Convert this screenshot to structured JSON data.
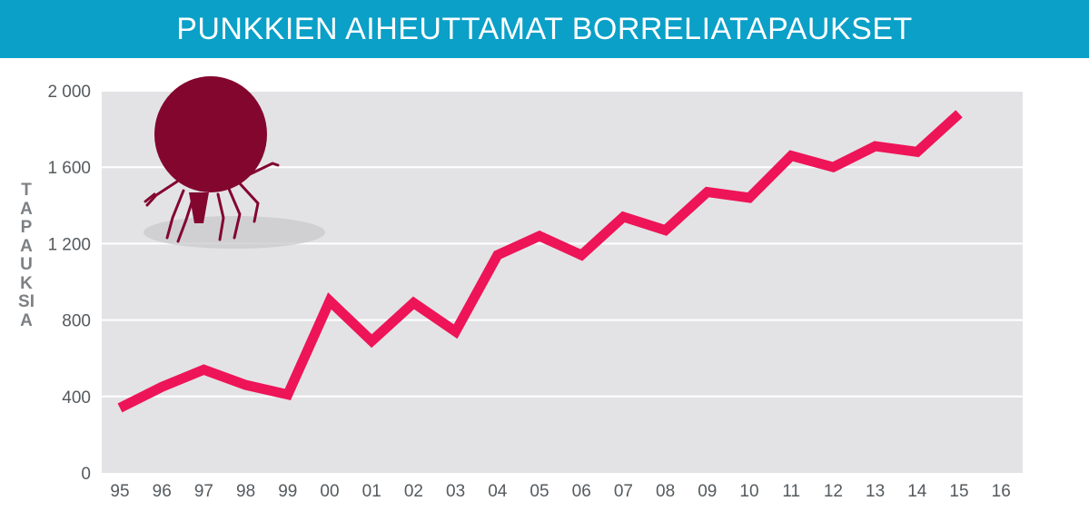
{
  "chart_data": {
    "type": "line",
    "title": "PUNKKIEN AIHEUTTAMAT BORRELIATAPAUKSET",
    "xlabel": "",
    "ylabel": "TAPAUKSIA",
    "categories": [
      "95",
      "96",
      "97",
      "98",
      "99",
      "00",
      "01",
      "02",
      "03",
      "04",
      "05",
      "06",
      "07",
      "08",
      "09",
      "10",
      "11",
      "12",
      "13",
      "14",
      "15",
      "16"
    ],
    "series": [
      {
        "name": "Borreliatapaukset",
        "values": [
          340,
          450,
          540,
          460,
          410,
          900,
          690,
          890,
          740,
          1140,
          1240,
          1140,
          1340,
          1270,
          1470,
          1440,
          1660,
          1600,
          1710,
          1680,
          1880,
          null
        ]
      }
    ],
    "ylim": [
      0,
      2000
    ],
    "yticks": [
      0,
      400,
      800,
      1200,
      1600,
      2000
    ],
    "ytick_labels": [
      "0",
      "400",
      "800",
      "1 200",
      "1 600",
      "2 000"
    ],
    "grid": true,
    "colors": {
      "header": "#0aa0c8",
      "plot_background": "#e3e3e5",
      "line": "#ee1458",
      "tick": "#7e8184",
      "tick_illustration": "#83062f"
    },
    "icon": "tick-icon"
  }
}
